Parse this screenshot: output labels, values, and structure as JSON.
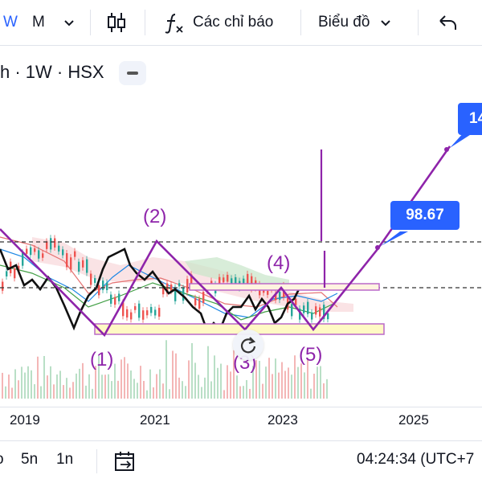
{
  "toolbar": {
    "interval_w": "W",
    "interval_m": "M",
    "indicators_label": "Các chỉ báo",
    "chart_type_label": "Biểu đồ"
  },
  "symbol": {
    "text": "h · 1W · HSX"
  },
  "chart": {
    "price_label_upper": "98.67",
    "price_label_top": "14",
    "waves": [
      "(1)",
      "(2)",
      "(3)",
      "(4)",
      "(5)"
    ],
    "years": [
      "2019",
      "2021",
      "2023",
      "2025"
    ]
  },
  "bottom": {
    "range_0": "o",
    "range_5y": "5n",
    "range_1y": "1n",
    "clock": "04:24:34 (UTC+7"
  },
  "colors": {
    "accent": "#2962ff",
    "wave": "#8e24aa"
  }
}
